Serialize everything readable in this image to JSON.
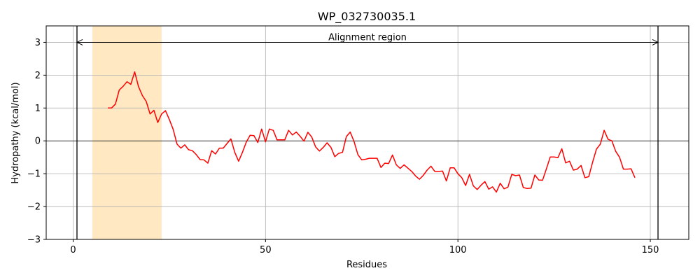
{
  "chart_data": {
    "type": "line",
    "title": "WP_032730035.1",
    "xlabel": "Residues",
    "ylabel": "Hydropathy (kcal/mol)",
    "xlim": [
      -7,
      160
    ],
    "ylim": [
      -3,
      3.5
    ],
    "xticks": [
      0,
      50,
      100,
      150
    ],
    "yticks": [
      -3,
      -2,
      -1,
      0,
      1,
      2,
      3
    ],
    "xtick_labels": [
      "0",
      "50",
      "100",
      "150"
    ],
    "ytick_labels": [
      "−3",
      "−2",
      "−1",
      "0",
      "1",
      "2",
      "3"
    ],
    "grid": true,
    "line_color": "#ff0000",
    "highlight": {
      "x_start": 5,
      "x_end": 23,
      "color": "#ffe8c2"
    },
    "vertical_lines": [
      1,
      152
    ],
    "annotation": {
      "text": "Alignment region",
      "x_start": 1,
      "x_end": 152,
      "y": 3
    },
    "series": [
      {
        "x": [
          9,
          10,
          11,
          12,
          13,
          14,
          15,
          16,
          17,
          18,
          19,
          20,
          21,
          22,
          23,
          24,
          25,
          26,
          27,
          28,
          29,
          30,
          31,
          32,
          33,
          34,
          35,
          36,
          37,
          38,
          39,
          40,
          41,
          42,
          43,
          44,
          45,
          46,
          47,
          48,
          49,
          50,
          51,
          52,
          53,
          54,
          55,
          56,
          57,
          58,
          59,
          60,
          61,
          62,
          63,
          64,
          65,
          66,
          67,
          68,
          69,
          70,
          71,
          72,
          73,
          74,
          75,
          76,
          77,
          78,
          79,
          80,
          81,
          82,
          83,
          84,
          85,
          86,
          87,
          88,
          89,
          90,
          91,
          92,
          93,
          94,
          95,
          96,
          97,
          98,
          99,
          100,
          101,
          102,
          103,
          104,
          105,
          106,
          107,
          108,
          109,
          110,
          111,
          112,
          113,
          114,
          115,
          116,
          117,
          118,
          119,
          120,
          121,
          122,
          123,
          124,
          125,
          126,
          127,
          128,
          129,
          130,
          131,
          132,
          133,
          134,
          135,
          136,
          137,
          138,
          139,
          140,
          141,
          142,
          143,
          144,
          145,
          146
        ],
        "values": [
          1.0,
          1.0,
          1.12,
          1.55,
          1.66,
          1.8,
          1.72,
          2.1,
          1.65,
          1.38,
          1.2,
          0.82,
          0.93,
          0.56,
          0.82,
          0.92,
          0.65,
          0.35,
          -0.1,
          -0.22,
          -0.12,
          -0.27,
          -0.3,
          -0.42,
          -0.57,
          -0.58,
          -0.68,
          -0.3,
          -0.4,
          -0.22,
          -0.22,
          -0.08,
          0.06,
          -0.35,
          -0.62,
          -0.35,
          -0.04,
          0.17,
          0.16,
          -0.05,
          0.36,
          -0.03,
          0.36,
          0.32,
          0.03,
          0.03,
          0.03,
          0.32,
          0.18,
          0.27,
          0.14,
          -0.01,
          0.26,
          0.12,
          -0.18,
          -0.31,
          -0.2,
          -0.06,
          -0.2,
          -0.48,
          -0.38,
          -0.35,
          0.13,
          0.27,
          -0.02,
          -0.42,
          -0.58,
          -0.56,
          -0.53,
          -0.53,
          -0.53,
          -0.81,
          -0.68,
          -0.69,
          -0.43,
          -0.73,
          -0.84,
          -0.73,
          -0.83,
          -0.93,
          -1.07,
          -1.17,
          -1.05,
          -0.89,
          -0.77,
          -0.93,
          -0.93,
          -0.92,
          -1.22,
          -0.82,
          -0.82,
          -1.0,
          -1.12,
          -1.36,
          -1.02,
          -1.37,
          -1.48,
          -1.35,
          -1.24,
          -1.47,
          -1.4,
          -1.56,
          -1.29,
          -1.46,
          -1.41,
          -1.02,
          -1.06,
          -1.04,
          -1.42,
          -1.45,
          -1.44,
          -1.04,
          -1.19,
          -1.2,
          -0.85,
          -0.49,
          -0.49,
          -0.51,
          -0.24,
          -0.67,
          -0.62,
          -0.89,
          -0.86,
          -0.75,
          -1.12,
          -1.09,
          -0.65,
          -0.25,
          -0.1,
          0.32,
          0.05,
          0.0,
          -0.32,
          -0.5,
          -0.86,
          -0.86,
          -0.85,
          -1.12
        ]
      }
    ]
  }
}
